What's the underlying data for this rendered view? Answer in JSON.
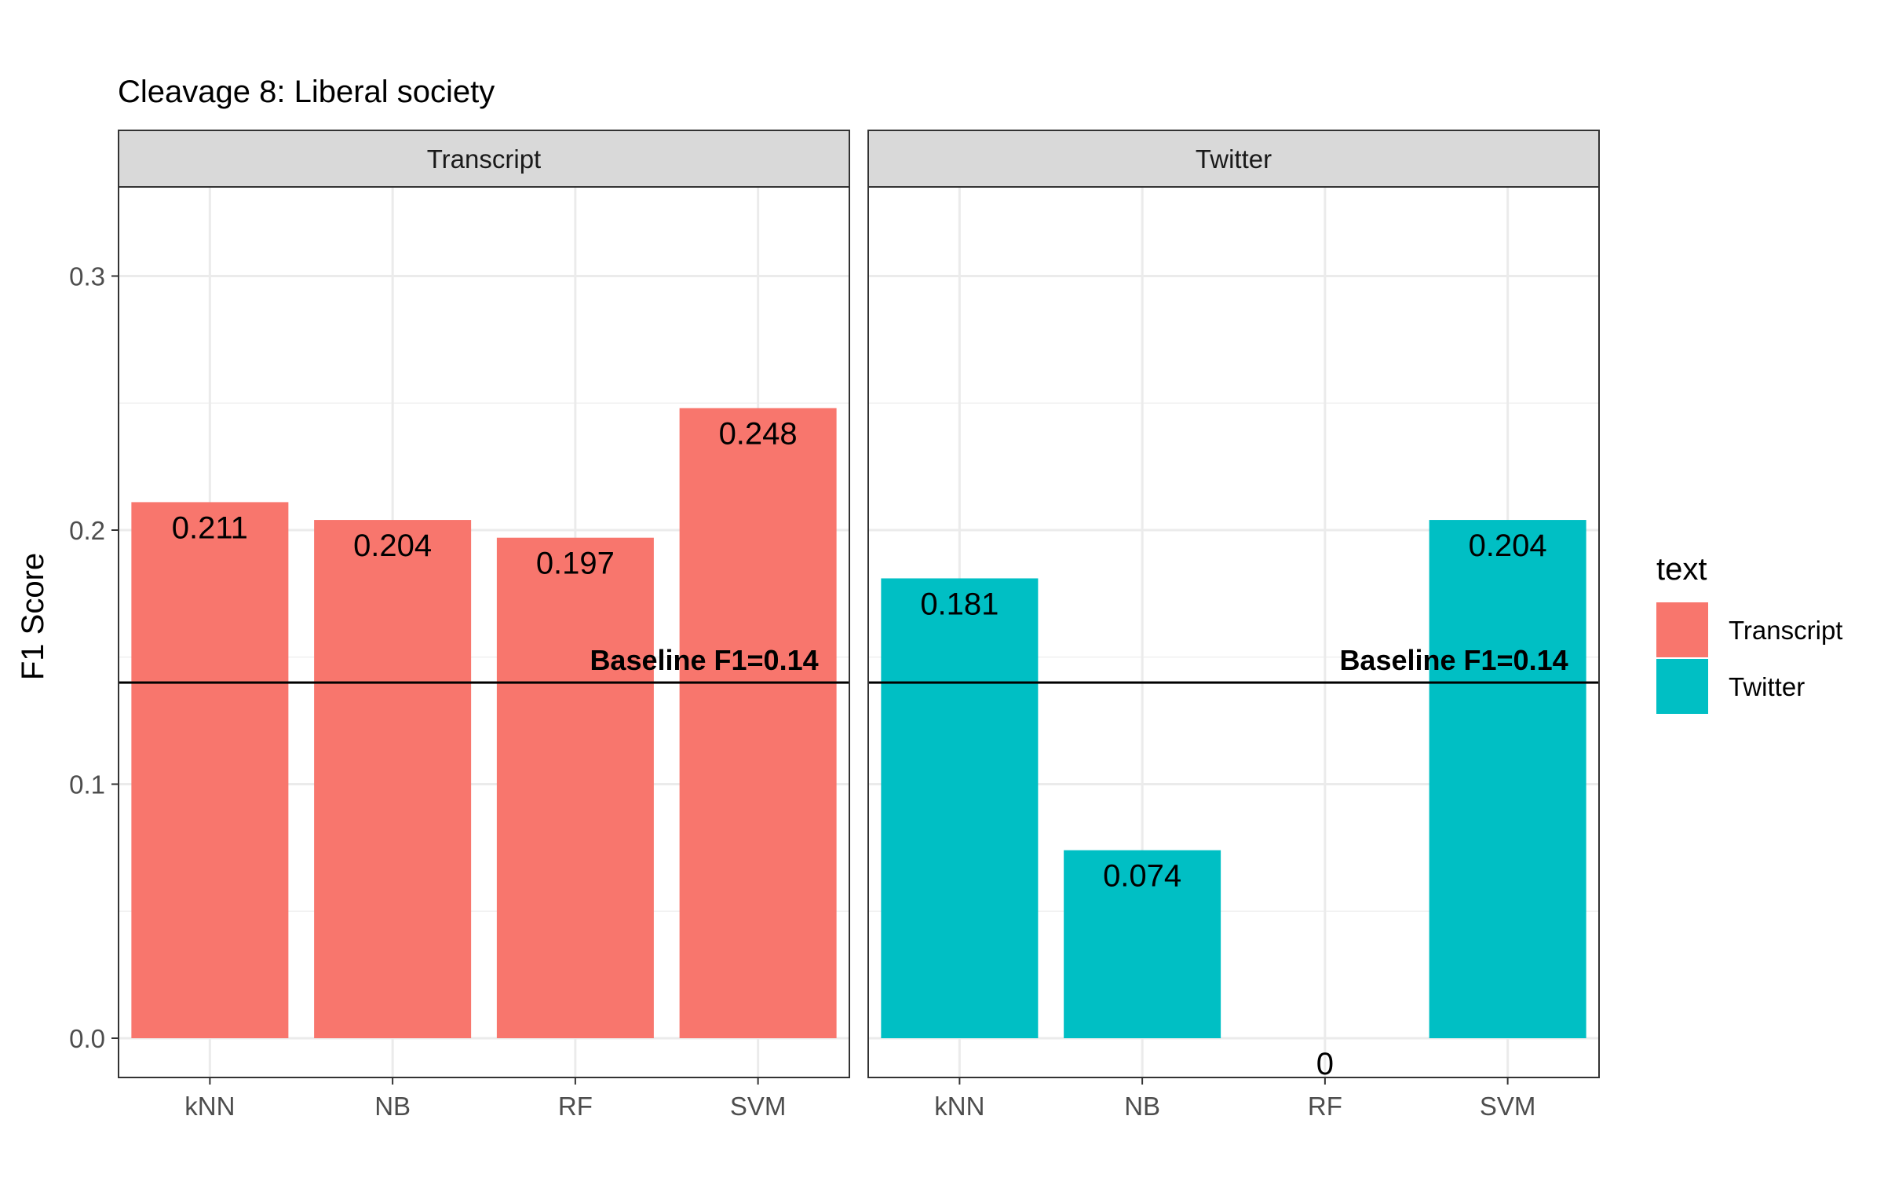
{
  "chart_data": {
    "type": "bar",
    "title": "Cleavage 8: Liberal society",
    "xlabel": "",
    "ylabel": "F1 Score",
    "ylim": [
      0,
      0.335
    ],
    "yticks": [
      0.0,
      0.1,
      0.2,
      0.3
    ],
    "ytick_labels": [
      "0.0",
      "0.1",
      "0.2",
      "0.3"
    ],
    "categories": [
      "kNN",
      "NB",
      "RF",
      "SVM"
    ],
    "facets": [
      {
        "name": "Transcript",
        "color": "#F8766D",
        "values": [
          0.211,
          0.204,
          0.197,
          0.248
        ],
        "labels": [
          "0.211",
          "0.204",
          "0.197",
          "0.248"
        ]
      },
      {
        "name": "Twitter",
        "color": "#00BFC4",
        "values": [
          0.181,
          0.074,
          0,
          0.204
        ],
        "labels": [
          "0.181",
          "0.074",
          "0",
          "0.204"
        ]
      }
    ],
    "baseline": {
      "value": 0.14,
      "label": "Baseline F1=0.14"
    },
    "legend": {
      "title": "text",
      "position": "right",
      "items": [
        {
          "label": "Transcript",
          "color": "#F8766D"
        },
        {
          "label": "Twitter",
          "color": "#00BFC4"
        }
      ]
    },
    "grid": true
  }
}
